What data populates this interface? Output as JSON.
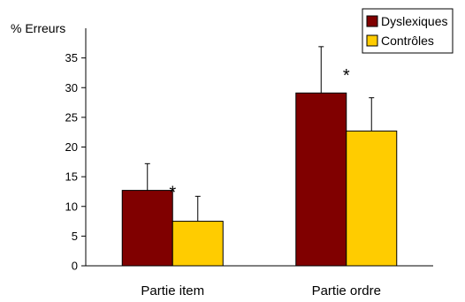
{
  "chart_data": {
    "type": "bar",
    "title": "",
    "xlabel": "",
    "ylabel": "% Erreurs",
    "ylim": [
      0,
      40
    ],
    "yticks": [
      0,
      5,
      10,
      15,
      20,
      25,
      30,
      35
    ],
    "categories": [
      "Partie item",
      "Partie ordre"
    ],
    "series": [
      {
        "name": "Dyslexiques",
        "color": "#800000",
        "values": [
          12.7,
          29.1
        ],
        "errors": [
          4.5,
          7.8
        ]
      },
      {
        "name": "Contrôles",
        "color": "#FFCC00",
        "values": [
          7.5,
          22.7
        ],
        "errors": [
          4.2,
          5.6
        ]
      }
    ],
    "annotations": [
      {
        "text": "*",
        "category": 0
      },
      {
        "text": "*",
        "category": 1
      }
    ],
    "legend": {
      "position": "top-right",
      "border": true
    },
    "grid": false
  }
}
